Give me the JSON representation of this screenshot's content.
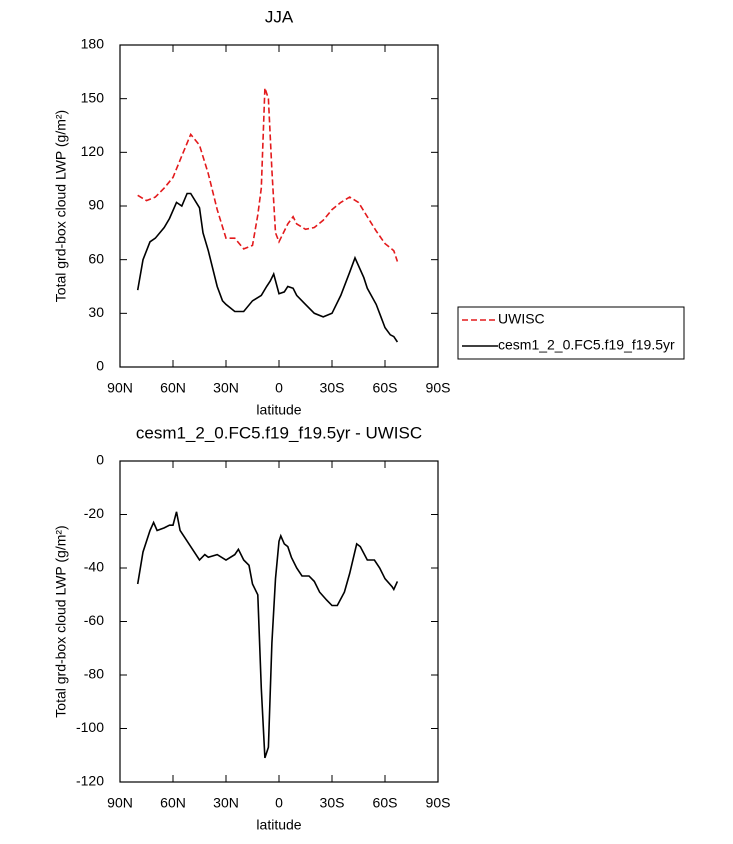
{
  "chart_data": [
    {
      "type": "line",
      "title": "JJA",
      "xlabel": "latitude",
      "ylabel": "Total grd-box cloud LWP (g/m²)",
      "xlim": [
        90,
        -90
      ],
      "ylim": [
        0,
        180
      ],
      "xticks": [
        {
          "value": 90,
          "label": "90N"
        },
        {
          "value": 60,
          "label": "60N"
        },
        {
          "value": 30,
          "label": "30N"
        },
        0,
        {
          "value": -30,
          "label": "30S"
        },
        {
          "value": -60,
          "label": "60S"
        },
        {
          "value": -90,
          "label": "90S"
        }
      ],
      "yticks": [
        0,
        30,
        60,
        90,
        120,
        150,
        180
      ],
      "legend": "right",
      "series": [
        {
          "name": "UWISC",
          "color": "#e31a1c",
          "dash": true,
          "x": [
            80,
            75,
            70,
            65,
            60,
            55,
            50,
            45,
            40,
            35,
            30,
            25,
            20,
            15,
            12,
            10,
            8,
            6,
            4,
            2,
            0,
            -5,
            -8,
            -10,
            -15,
            -20,
            -25,
            -30,
            -35,
            -40,
            -45,
            -50,
            -55,
            -60,
            -65,
            -67
          ],
          "values": [
            96,
            93,
            95,
            100,
            106,
            118,
            130,
            124,
            108,
            88,
            72,
            72,
            66,
            68,
            85,
            100,
            156,
            150,
            110,
            75,
            70,
            80,
            84,
            80,
            77,
            78,
            82,
            88,
            92,
            95,
            92,
            84,
            76,
            69,
            65,
            59
          ]
        },
        {
          "name": "cesm1_2_0.FC5.f19_f19.5yr",
          "color": "#000000",
          "dash": false,
          "x": [
            80,
            77,
            73,
            70,
            65,
            62,
            58,
            55,
            52,
            50,
            45,
            43,
            40,
            35,
            32,
            30,
            25,
            20,
            15,
            10,
            7,
            5,
            3,
            0,
            -3,
            -5,
            -8,
            -10,
            -15,
            -20,
            -25,
            -30,
            -35,
            -40,
            -43,
            -48,
            -50,
            -55,
            -60,
            -63,
            -65,
            -67
          ],
          "values": [
            43,
            60,
            70,
            72,
            78,
            83,
            92,
            90,
            97,
            97,
            89,
            75,
            65,
            45,
            37,
            35,
            31,
            31,
            37,
            40,
            45,
            48,
            52,
            41,
            42,
            45,
            44,
            40,
            35,
            30,
            28,
            30,
            40,
            53,
            61,
            50,
            44,
            35,
            22,
            18,
            17,
            14
          ]
        }
      ]
    },
    {
      "type": "line",
      "title": "cesm1_2_0.FC5.f19_f19.5yr - UWISC",
      "xlabel": "latitude",
      "ylabel": "Total grd-box cloud LWP (g/m²)",
      "xlim": [
        90,
        -90
      ],
      "ylim": [
        -120,
        0
      ],
      "xticks": [
        {
          "value": 90,
          "label": "90N"
        },
        {
          "value": 60,
          "label": "60N"
        },
        {
          "value": 30,
          "label": "30N"
        },
        0,
        {
          "value": -30,
          "label": "30S"
        },
        {
          "value": -60,
          "label": "60S"
        },
        {
          "value": -90,
          "label": "90S"
        }
      ],
      "yticks": [
        -120,
        -100,
        -80,
        -60,
        -40,
        -20,
        0
      ],
      "series": [
        {
          "color": "#000000",
          "dash": false,
          "x": [
            80,
            77,
            73,
            71,
            69,
            65,
            62,
            60,
            58,
            56,
            50,
            45,
            42,
            40,
            35,
            30,
            25,
            23,
            20,
            17,
            15,
            12,
            10,
            8,
            6,
            4,
            2,
            0,
            -1,
            -3,
            -5,
            -7,
            -10,
            -13,
            -17,
            -20,
            -23,
            -27,
            -30,
            -33,
            -37,
            -40,
            -44,
            -46,
            -50,
            -54,
            -57,
            -60,
            -64,
            -65,
            -67
          ],
          "values": [
            -46,
            -34,
            -26,
            -23,
            -26,
            -25,
            -24,
            -24,
            -19,
            -26,
            -32,
            -37,
            -35,
            -36,
            -35,
            -37,
            -35,
            -33,
            -37,
            -39,
            -46,
            -50,
            -85,
            -111,
            -107,
            -68,
            -44,
            -30,
            -28,
            -31,
            -32,
            -36,
            -40,
            -43,
            -43,
            -45,
            -49,
            -52,
            -54,
            -54,
            -49,
            -42,
            -31,
            -32,
            -37,
            -37,
            -40,
            -44,
            -47,
            -48,
            -45
          ]
        }
      ]
    }
  ]
}
